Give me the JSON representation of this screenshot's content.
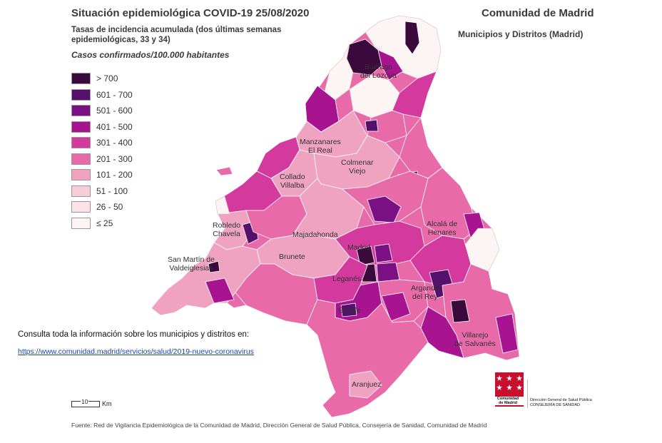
{
  "header": {
    "title": "Situación epidemiológica COVID-19  25/08/2020",
    "subtitle": "Tasas de incidencia acumulada (dos últimas semanas epidemiológicas, 33 y 34)",
    "cases_label": "Casos confirmados/100.000 habitantes",
    "org_title": "Comunidad de Madrid",
    "org_subtitle": "Municipios y Distritos (Madrid)"
  },
  "legend": {
    "items": [
      {
        "label": "> 700",
        "color": "#3b0a3d"
      },
      {
        "label": "601 - 700",
        "color": "#54106a"
      },
      {
        "label": "501 - 600",
        "color": "#7a1082"
      },
      {
        "label": "401 - 500",
        "color": "#a8148f"
      },
      {
        "label": "301 - 400",
        "color": "#d43a9e"
      },
      {
        "label": "201 - 300",
        "color": "#e96aa8"
      },
      {
        "label": "101 - 200",
        "color": "#f0a3c0"
      },
      {
        "label": "51 - 100",
        "color": "#f7cdd7"
      },
      {
        "label": "26 - 50",
        "color": "#fbe3e7"
      },
      {
        "label": "≤ 25",
        "color": "#fdf5f4"
      }
    ]
  },
  "places": [
    {
      "name": "Buitrago del Lozoya",
      "lines": [
        "Buitrago",
        "del Lozoya"
      ]
    },
    {
      "name": "Manzanares El Real",
      "lines": [
        "Manzanares",
        "El Real"
      ]
    },
    {
      "name": "Colmenar Viejo",
      "lines": [
        "Colmenar",
        "Viejo"
      ]
    },
    {
      "name": "Collado Villalba",
      "lines": [
        "Collado",
        "Villalba"
      ]
    },
    {
      "name": "Robledo Chavela",
      "lines": [
        "Robledo",
        "Chavela"
      ]
    },
    {
      "name": "Majadahonda",
      "lines": [
        "Majadahonda"
      ]
    },
    {
      "name": "Madrid",
      "lines": [
        "Madrid"
      ]
    },
    {
      "name": "Alcalá de Henares",
      "lines": [
        "Alcalá de",
        "Henares"
      ]
    },
    {
      "name": "San Martín de Valdeiglesias",
      "lines": [
        "San Martín de",
        "Valdeiglesias"
      ]
    },
    {
      "name": "Brunete",
      "lines": [
        "Brunete"
      ]
    },
    {
      "name": "Leganés",
      "lines": [
        "Leganés"
      ]
    },
    {
      "name": "Arganda del Rey",
      "lines": [
        "Arganda",
        "del Rey"
      ]
    },
    {
      "name": "Getafe",
      "lines": [
        "Getafe"
      ]
    },
    {
      "name": "Villarejo de Salvanés",
      "lines": [
        "Villarejo",
        "de Salvanés"
      ]
    },
    {
      "name": "Aranjuez",
      "lines": [
        "Aranjuez"
      ]
    }
  ],
  "info": {
    "consulta": "Consulta toda la información sobre los municipios y distritos en:",
    "link": "https://www.comunidad.madrid/servicios/salud/2019-nuevo-coronavirus"
  },
  "scale": {
    "value": "10",
    "unit": "Km"
  },
  "source": "Fuente: Red de Vigilancia Epidemiológica de la Comunidad de Madrid, Dirección General de Salud Pública, Consejería de Sanidad, Comunidad de Madrid",
  "logo": {
    "text_line1": "Comunidad",
    "text_line2": "de Madrid",
    "dg_line1": "Dirección General de Salud Pública",
    "dg_line2": "CONSEJERÍA DE SANIDAD"
  }
}
